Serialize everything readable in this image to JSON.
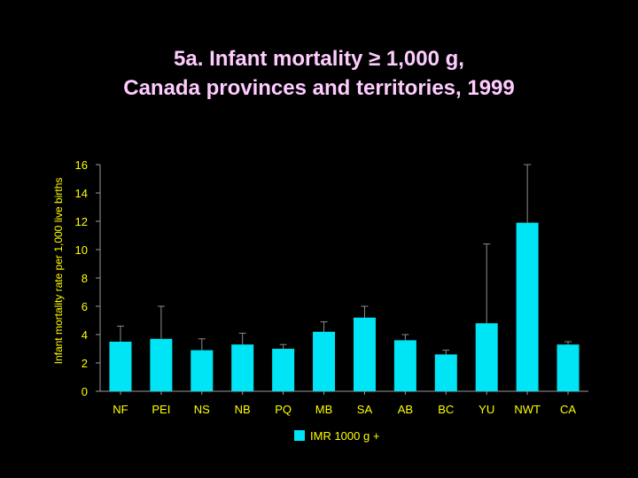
{
  "title": {
    "line1": "5a. Infant mortality ≥ 1,000 g,",
    "line2": "Canada provinces and territories, 1999"
  },
  "colors": {
    "background": "#000000",
    "title": "#ffccff",
    "axis_text": "#ffff00",
    "bar": "#00e5f5",
    "axis_line": "#9a9a9a",
    "error_bar": "#8c8c8c"
  },
  "chart_data": {
    "type": "bar",
    "categories": [
      "NF",
      "PEI",
      "NS",
      "NB",
      "PQ",
      "MB",
      "SA",
      "AB",
      "BC",
      "YU",
      "NWT",
      "CA"
    ],
    "series": [
      {
        "name": "IMR 1000 g +",
        "values": [
          3.5,
          3.7,
          2.9,
          3.3,
          3.0,
          4.2,
          5.2,
          3.6,
          2.6,
          4.8,
          11.9,
          3.3
        ],
        "error_upper": [
          4.6,
          6.0,
          3.7,
          4.1,
          3.3,
          4.9,
          6.0,
          4.0,
          2.9,
          10.4,
          16.0,
          3.5
        ]
      }
    ],
    "ylabel": "Infant mortality rate per 1,000 live births",
    "xlabel": "",
    "ylim": [
      0,
      16
    ],
    "yticks": [
      0,
      2,
      4,
      6,
      8,
      10,
      12,
      14,
      16
    ],
    "grid": false,
    "legend": "bottom-center",
    "legend_label": "IMR 1000 g +"
  }
}
